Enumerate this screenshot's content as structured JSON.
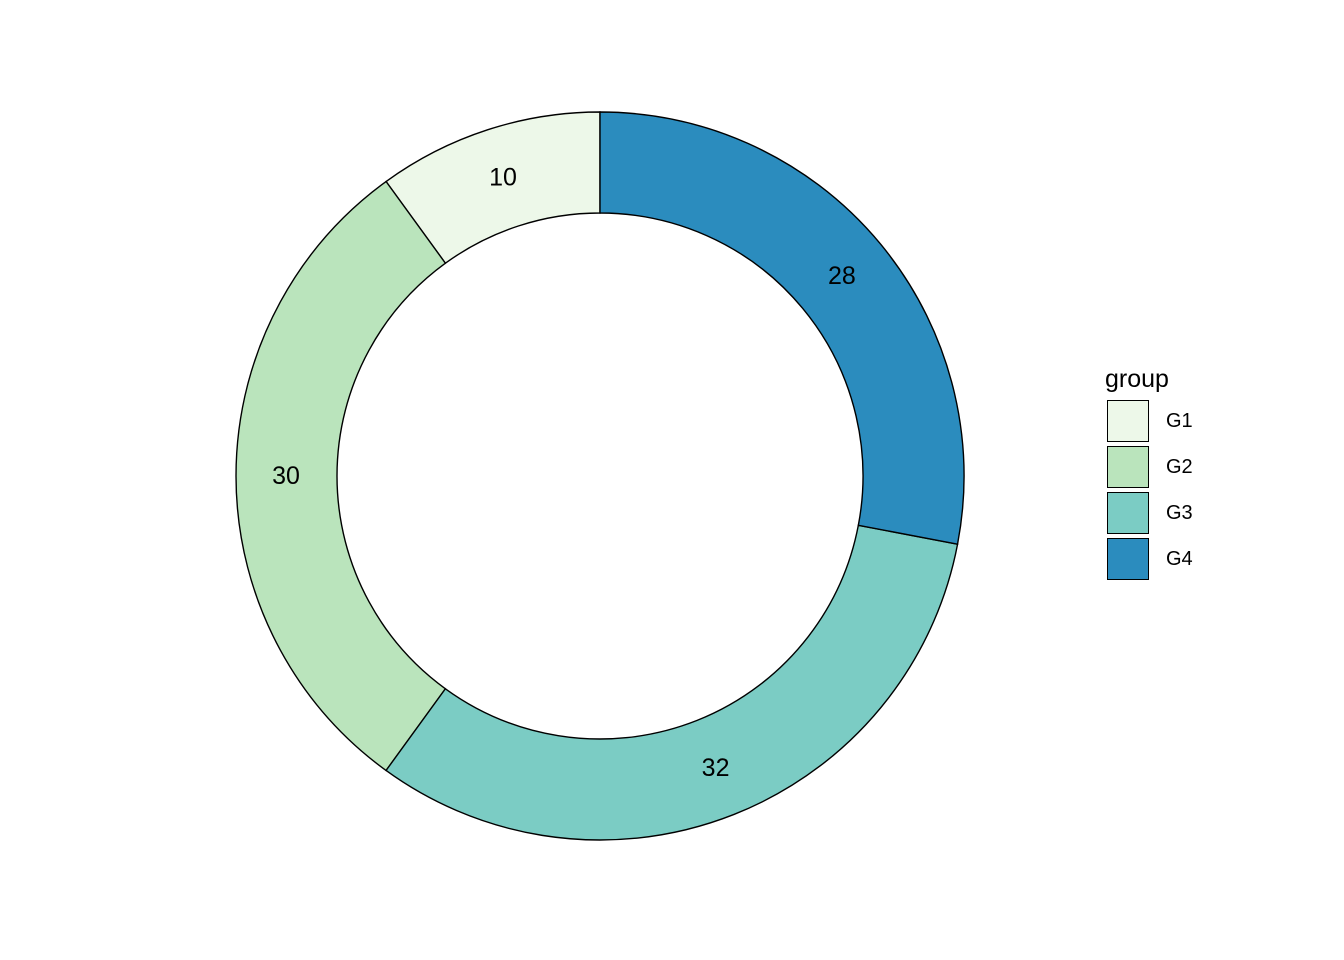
{
  "chart_data": {
    "type": "pie",
    "variant": "donut",
    "categories": [
      "G1",
      "G2",
      "G3",
      "G4"
    ],
    "values": [
      10,
      30,
      32,
      28
    ],
    "colors": [
      "#EDF8E9",
      "#BAE4BC",
      "#7BCCC4",
      "#2B8CBE"
    ],
    "stroke_color": "#000000",
    "direction": "counter-clockwise from 12 o'clock",
    "legend": {
      "title": "group",
      "position": "right"
    },
    "data_labels": true
  }
}
